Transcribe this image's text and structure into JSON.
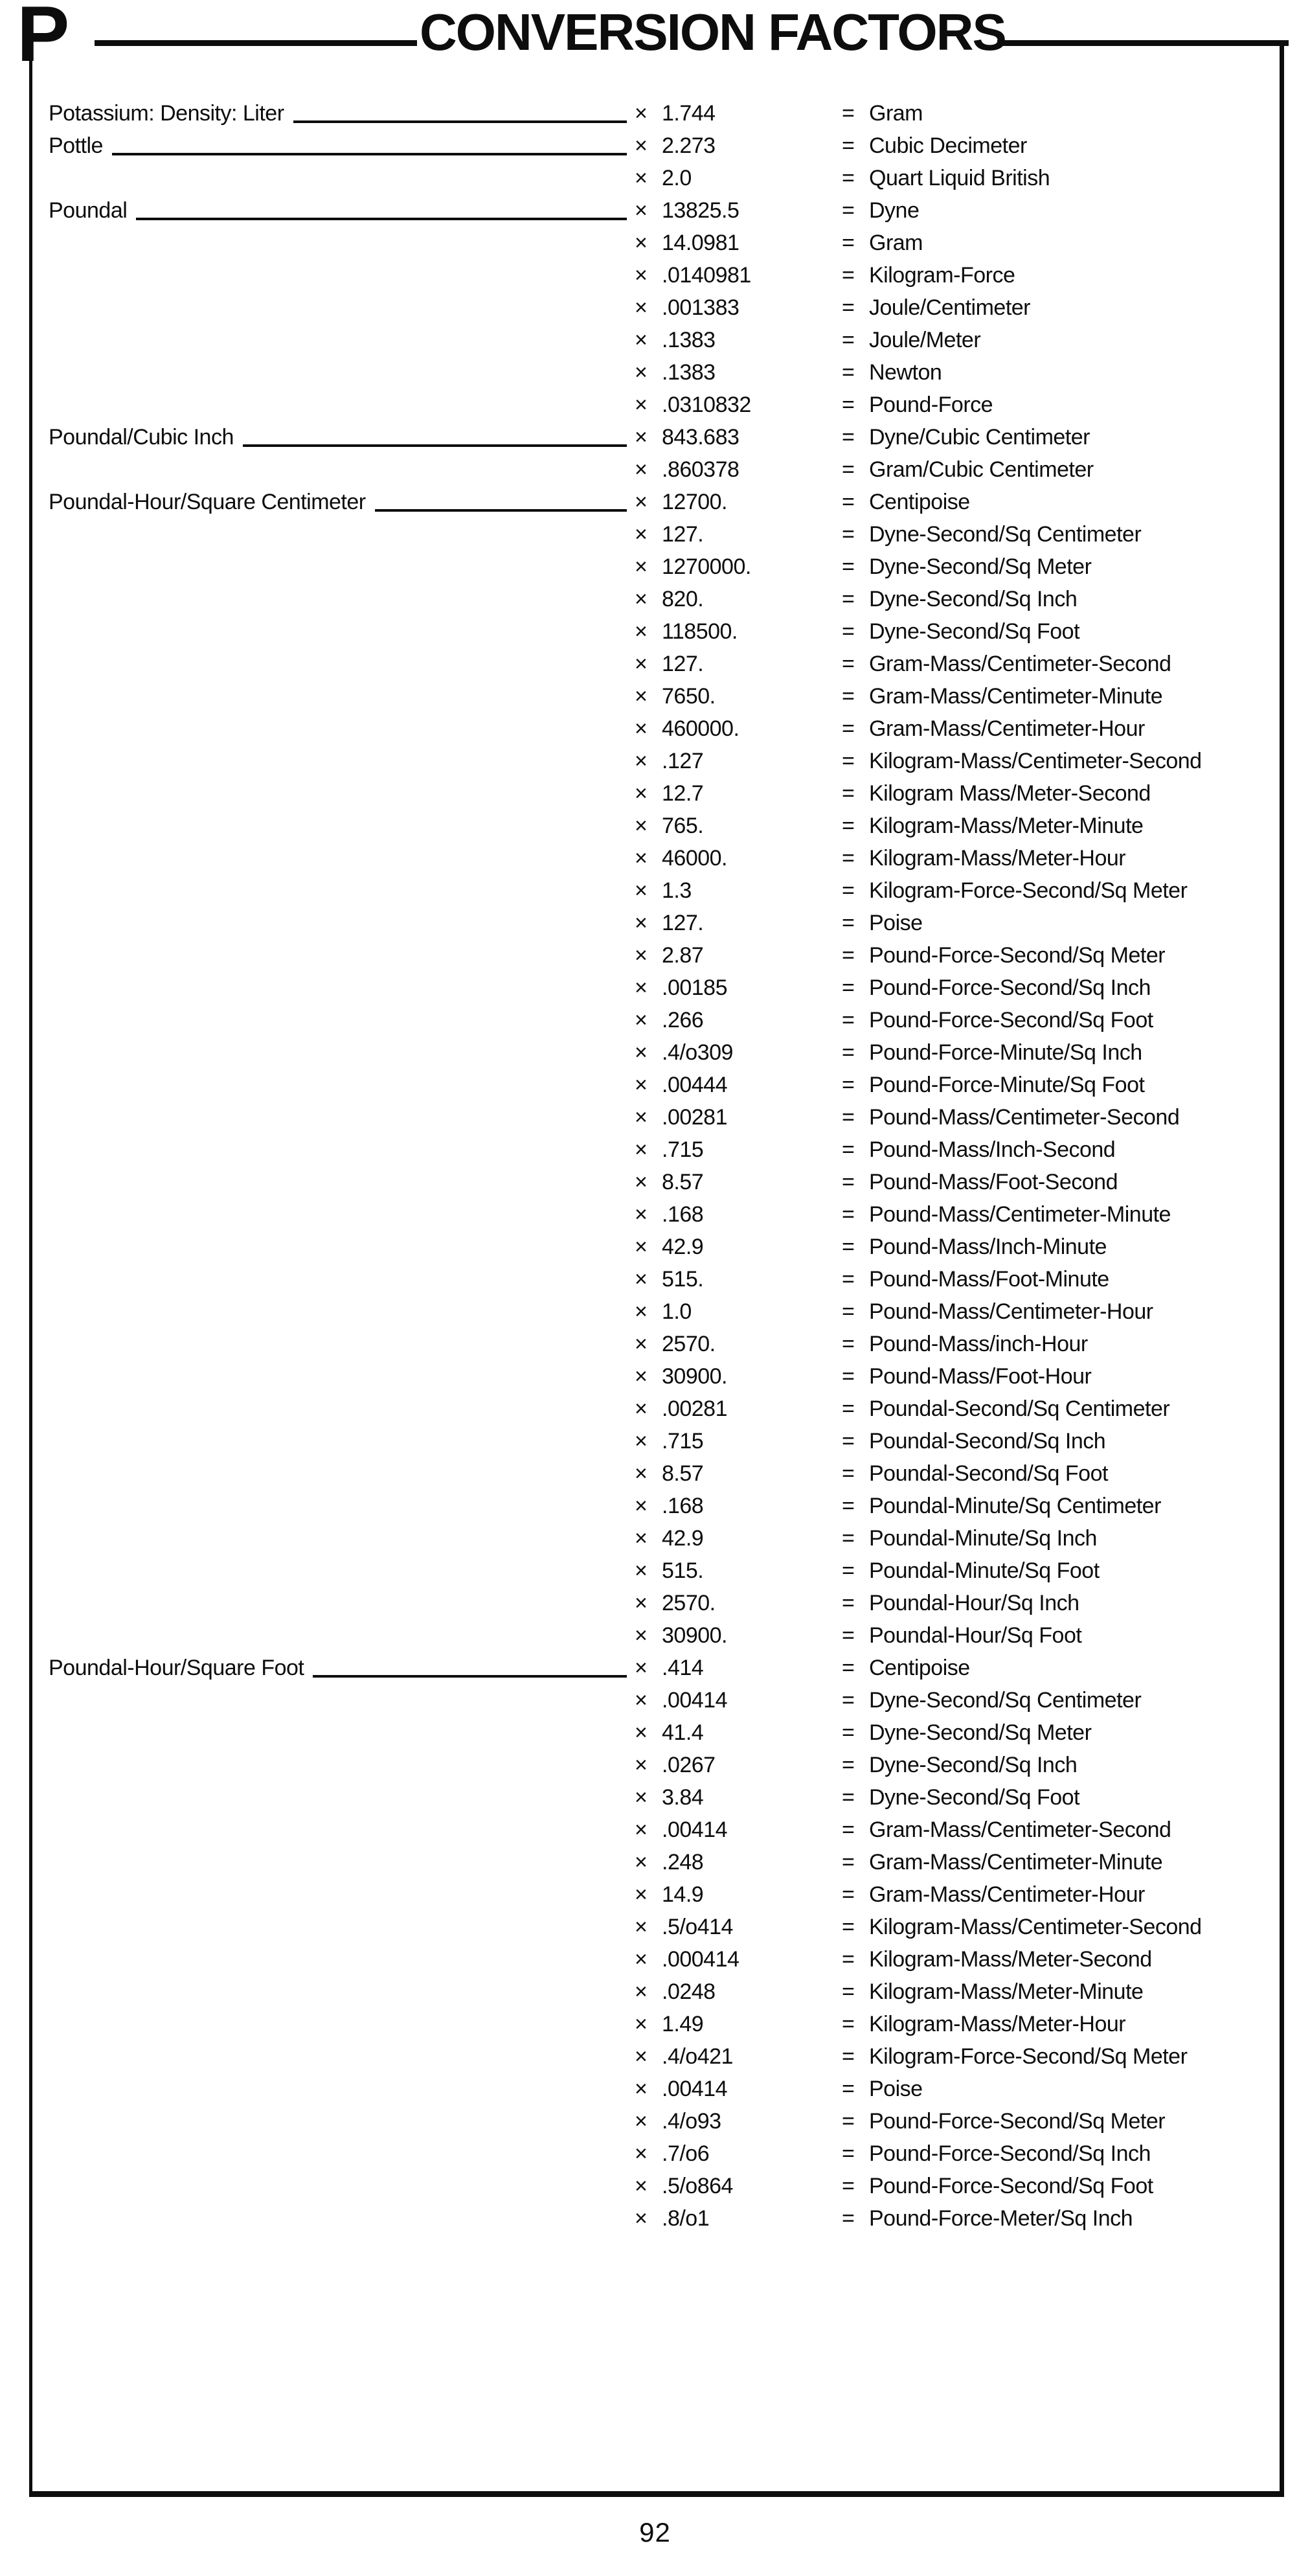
{
  "page": {
    "section_letter": "P",
    "title": "CONVERSION FACTORS",
    "page_number": "92",
    "multiply_symbol": "×",
    "equals_symbol": "="
  },
  "table": {
    "rows": [
      {
        "term": "Potassium: Density: Liter",
        "factor": "1.744",
        "unit": "Gram"
      },
      {
        "term": "Pottle",
        "factor": "2.273",
        "unit": "Cubic Decimeter"
      },
      {
        "term": "",
        "factor": "2.0",
        "unit": "Quart Liquid British"
      },
      {
        "term": "Poundal",
        "factor": "13825.5",
        "unit": "Dyne"
      },
      {
        "term": "",
        "factor": "14.0981",
        "unit": "Gram"
      },
      {
        "term": "",
        "factor": ".0140981",
        "unit": "Kilogram-Force"
      },
      {
        "term": "",
        "factor": ".001383",
        "unit": "Joule/Centimeter"
      },
      {
        "term": "",
        "factor": ".1383",
        "unit": "Joule/Meter"
      },
      {
        "term": "",
        "factor": ".1383",
        "unit": "Newton"
      },
      {
        "term": "",
        "factor": ".0310832",
        "unit": "Pound-Force"
      },
      {
        "term": "Poundal/Cubic Inch",
        "factor": "843.683",
        "unit": "Dyne/Cubic Centimeter"
      },
      {
        "term": "",
        "factor": ".860378",
        "unit": "Gram/Cubic Centimeter"
      },
      {
        "term": "Poundal-Hour/Square Centimeter",
        "factor": "12700.",
        "unit": "Centipoise"
      },
      {
        "term": "",
        "factor": "127.",
        "unit": "Dyne-Second/Sq Centimeter"
      },
      {
        "term": "",
        "factor": "1270000.",
        "unit": "Dyne-Second/Sq Meter"
      },
      {
        "term": "",
        "factor": "820.",
        "unit": "Dyne-Second/Sq Inch"
      },
      {
        "term": "",
        "factor": "118500.",
        "unit": "Dyne-Second/Sq Foot"
      },
      {
        "term": "",
        "factor": "127.",
        "unit": "Gram-Mass/Centimeter-Second"
      },
      {
        "term": "",
        "factor": "7650.",
        "unit": "Gram-Mass/Centimeter-Minute"
      },
      {
        "term": "",
        "factor": "460000.",
        "unit": "Gram-Mass/Centimeter-Hour"
      },
      {
        "term": "",
        "factor": ".127",
        "unit": "Kilogram-Mass/Centimeter-Second"
      },
      {
        "term": "",
        "factor": "12.7",
        "unit": "Kilogram Mass/Meter-Second"
      },
      {
        "term": "",
        "factor": "765.",
        "unit": "Kilogram-Mass/Meter-Minute"
      },
      {
        "term": "",
        "factor": "46000.",
        "unit": "Kilogram-Mass/Meter-Hour"
      },
      {
        "term": "",
        "factor": "1.3",
        "unit": "Kilogram-Force-Second/Sq Meter"
      },
      {
        "term": "",
        "factor": "127.",
        "unit": "Poise"
      },
      {
        "term": "",
        "factor": "2.87",
        "unit": "Pound-Force-Second/Sq Meter"
      },
      {
        "term": "",
        "factor": ".00185",
        "unit": "Pound-Force-Second/Sq Inch"
      },
      {
        "term": "",
        "factor": ".266",
        "unit": "Pound-Force-Second/Sq Foot"
      },
      {
        "term": "",
        "factor": ".4/o309",
        "unit": "Pound-Force-Minute/Sq Inch"
      },
      {
        "term": "",
        "factor": ".00444",
        "unit": "Pound-Force-Minute/Sq Foot"
      },
      {
        "term": "",
        "factor": ".00281",
        "unit": "Pound-Mass/Centimeter-Second"
      },
      {
        "term": "",
        "factor": ".715",
        "unit": "Pound-Mass/Inch-Second"
      },
      {
        "term": "",
        "factor": "8.57",
        "unit": "Pound-Mass/Foot-Second"
      },
      {
        "term": "",
        "factor": ".168",
        "unit": "Pound-Mass/Centimeter-Minute"
      },
      {
        "term": "",
        "factor": "42.9",
        "unit": "Pound-Mass/Inch-Minute"
      },
      {
        "term": "",
        "factor": "515.",
        "unit": "Pound-Mass/Foot-Minute"
      },
      {
        "term": "",
        "factor": "1.0",
        "unit": "Pound-Mass/Centimeter-Hour"
      },
      {
        "term": "",
        "factor": "2570.",
        "unit": "Pound-Mass/inch-Hour"
      },
      {
        "term": "",
        "factor": "30900.",
        "unit": "Pound-Mass/Foot-Hour"
      },
      {
        "term": "",
        "factor": ".00281",
        "unit": "Poundal-Second/Sq Centimeter"
      },
      {
        "term": "",
        "factor": ".715",
        "unit": "Poundal-Second/Sq Inch"
      },
      {
        "term": "",
        "factor": "8.57",
        "unit": "Poundal-Second/Sq Foot"
      },
      {
        "term": "",
        "factor": ".168",
        "unit": "Poundal-Minute/Sq Centimeter"
      },
      {
        "term": "",
        "factor": "42.9",
        "unit": "Poundal-Minute/Sq Inch"
      },
      {
        "term": "",
        "factor": "515.",
        "unit": "Poundal-Minute/Sq Foot"
      },
      {
        "term": "",
        "factor": "2570.",
        "unit": "Poundal-Hour/Sq Inch"
      },
      {
        "term": "",
        "factor": "30900.",
        "unit": "Poundal-Hour/Sq Foot"
      },
      {
        "term": "Poundal-Hour/Square Foot",
        "factor": ".414",
        "unit": "Centipoise"
      },
      {
        "term": "",
        "factor": ".00414",
        "unit": "Dyne-Second/Sq Centimeter"
      },
      {
        "term": "",
        "factor": "41.4",
        "unit": "Dyne-Second/Sq Meter"
      },
      {
        "term": "",
        "factor": ".0267",
        "unit": "Dyne-Second/Sq Inch"
      },
      {
        "term": "",
        "factor": "3.84",
        "unit": "Dyne-Second/Sq Foot"
      },
      {
        "term": "",
        "factor": ".00414",
        "unit": "Gram-Mass/Centimeter-Second"
      },
      {
        "term": "",
        "factor": ".248",
        "unit": "Gram-Mass/Centimeter-Minute"
      },
      {
        "term": "",
        "factor": "14.9",
        "unit": "Gram-Mass/Centimeter-Hour"
      },
      {
        "term": "",
        "factor": ".5/o414",
        "unit": "Kilogram-Mass/Centimeter-Second"
      },
      {
        "term": "",
        "factor": ".000414",
        "unit": "Kilogram-Mass/Meter-Second"
      },
      {
        "term": "",
        "factor": ".0248",
        "unit": "Kilogram-Mass/Meter-Minute"
      },
      {
        "term": "",
        "factor": "1.49",
        "unit": "Kilogram-Mass/Meter-Hour"
      },
      {
        "term": "",
        "factor": ".4/o421",
        "unit": "Kilogram-Force-Second/Sq Meter"
      },
      {
        "term": "",
        "factor": ".00414",
        "unit": "Poise"
      },
      {
        "term": "",
        "factor": ".4/o93",
        "unit": "Pound-Force-Second/Sq Meter"
      },
      {
        "term": "",
        "factor": ".7/o6",
        "unit": "Pound-Force-Second/Sq Inch"
      },
      {
        "term": "",
        "factor": ".5/o864",
        "unit": "Pound-Force-Second/Sq Foot"
      },
      {
        "term": "",
        "factor": ".8/o1",
        "unit": "Pound-Force-Meter/Sq Inch"
      }
    ]
  }
}
